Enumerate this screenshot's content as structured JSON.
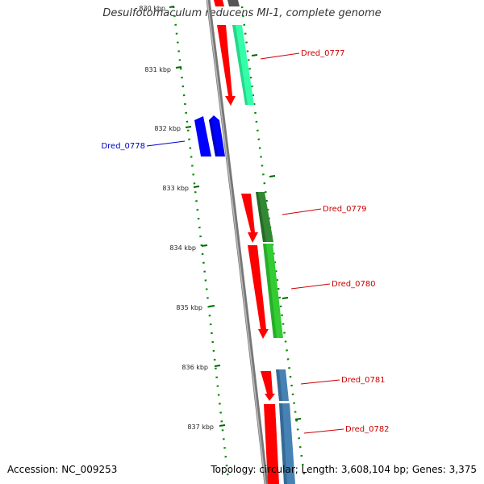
{
  "title": "Desulfotomaculum reducens MI-1, complete genome",
  "accession": "Accession: NC_009253",
  "topology": "Topology: circular; Length: 3,608,104 bp; Genes: 3,375",
  "ticks": [
    {
      "label": "830 kbp"
    },
    {
      "label": "831 kbp"
    },
    {
      "label": "832 kbp"
    },
    {
      "label": "833 kbp"
    },
    {
      "label": "834 kbp"
    },
    {
      "label": "835 kbp"
    },
    {
      "label": "836 kbp"
    },
    {
      "label": "837 kbp"
    }
  ],
  "genes": [
    {
      "label": "Dred_0777",
      "color": "#cc0000",
      "fill": "#33ffaa",
      "cog": "#ff0000"
    },
    {
      "label": "Dred_0778",
      "color": "#0000cc",
      "fill": "#0000ff",
      "cog": "#0000ff"
    },
    {
      "label": "Dred_0779",
      "color": "#cc0000",
      "fill": "#338833",
      "cog": "#ff0000"
    },
    {
      "label": "Dred_0780",
      "color": "#cc0000",
      "fill": "#33cc33",
      "cog": "#ff0000"
    },
    {
      "label": "Dred_0781",
      "color": "#cc0000",
      "fill": "#4682b4",
      "cog": "#ff0000"
    },
    {
      "label": "Dred_0782",
      "color": "#cc0000",
      "fill": "#4682b4",
      "cog": "#ff0000"
    }
  ],
  "colors": {
    "backbone": "#888888",
    "ticks": "#006600",
    "gc_dots": "#008800"
  }
}
